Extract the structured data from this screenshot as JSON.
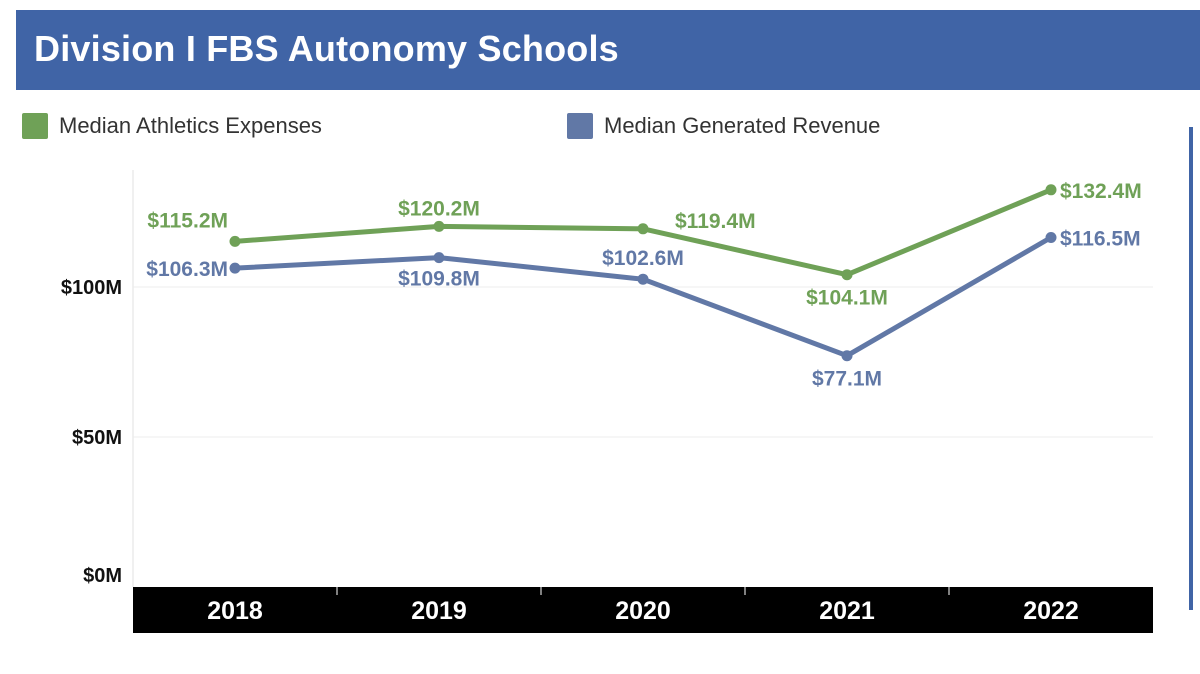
{
  "title": "Division I FBS Autonomy Schools",
  "colors": {
    "title_bar": "#4064a6",
    "expenses": "#6fa157",
    "revenue": "#6178a6",
    "axis_band": "#000000"
  },
  "chart_data": {
    "type": "line",
    "title": "Division I FBS Autonomy Schools",
    "categories": [
      "2018",
      "2019",
      "2020",
      "2021",
      "2022"
    ],
    "y_ticks": [
      {
        "value": 0,
        "label": "$0M"
      },
      {
        "value": 50,
        "label": "$50M"
      },
      {
        "value": 100,
        "label": "$100M"
      }
    ],
    "ylim": [
      0,
      140
    ],
    "legend_position": "top",
    "series": [
      {
        "name": "Median Athletics Expenses",
        "values": [
          115.2,
          120.2,
          119.4,
          104.1,
          132.4
        ],
        "labels": [
          "$115.2M",
          "$120.2M",
          "$119.4M",
          "$104.1M",
          "$132.4M"
        ]
      },
      {
        "name": "Median Generated Revenue",
        "values": [
          106.3,
          109.8,
          102.6,
          77.1,
          116.5
        ],
        "labels": [
          "$106.3M",
          "$109.8M",
          "$102.6M",
          "$77.1M",
          "$116.5M"
        ]
      }
    ]
  }
}
